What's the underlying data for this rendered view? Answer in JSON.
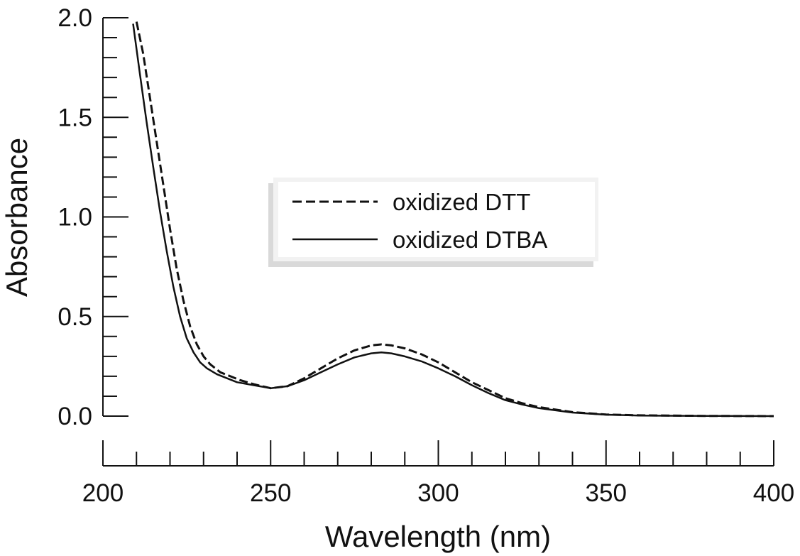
{
  "chart_data": {
    "type": "line",
    "xlabel": "Wavelength (nm)",
    "ylabel": "Absorbance",
    "xlim": [
      200,
      400
    ],
    "ylim": [
      0.0,
      2.0
    ],
    "x_ticks": [
      "200",
      "250",
      "300",
      "350",
      "400"
    ],
    "y_ticks": [
      "0.0",
      "0.5",
      "1.0",
      "1.5",
      "2.0"
    ],
    "grid": false,
    "legend_position": "center",
    "series": [
      {
        "name": "oxidized DTT",
        "style": "dashed",
        "color": "#111111",
        "x": [
          210,
          212,
          214,
          216,
          218,
          220,
          222,
          224,
          226,
          228,
          230,
          232,
          235,
          238,
          241,
          245,
          250,
          255,
          260,
          265,
          270,
          275,
          280,
          283,
          286,
          290,
          295,
          300,
          305,
          310,
          315,
          320,
          325,
          330,
          340,
          350,
          360,
          380,
          400
        ],
        "y": [
          1.98,
          1.82,
          1.6,
          1.38,
          1.16,
          0.94,
          0.74,
          0.58,
          0.45,
          0.36,
          0.3,
          0.26,
          0.22,
          0.2,
          0.18,
          0.16,
          0.14,
          0.15,
          0.19,
          0.24,
          0.29,
          0.33,
          0.355,
          0.36,
          0.355,
          0.34,
          0.31,
          0.27,
          0.22,
          0.17,
          0.13,
          0.09,
          0.065,
          0.045,
          0.02,
          0.008,
          0.004,
          0.001,
          0.0
        ]
      },
      {
        "name": "oxidized DTBA",
        "style": "solid",
        "color": "#111111",
        "x": [
          209,
          211,
          213,
          215,
          217,
          219,
          221,
          223,
          225,
          227,
          229,
          231,
          234,
          237,
          240,
          245,
          250,
          255,
          260,
          265,
          270,
          275,
          280,
          283,
          286,
          290,
          295,
          300,
          305,
          310,
          315,
          320,
          325,
          330,
          340,
          350,
          360,
          380,
          400
        ],
        "y": [
          1.97,
          1.72,
          1.48,
          1.25,
          1.03,
          0.83,
          0.65,
          0.5,
          0.39,
          0.32,
          0.27,
          0.24,
          0.21,
          0.19,
          0.17,
          0.155,
          0.14,
          0.15,
          0.18,
          0.22,
          0.26,
          0.295,
          0.315,
          0.32,
          0.315,
          0.3,
          0.275,
          0.24,
          0.2,
          0.155,
          0.115,
          0.08,
          0.058,
          0.04,
          0.018,
          0.007,
          0.003,
          0.001,
          0.0
        ]
      }
    ]
  }
}
